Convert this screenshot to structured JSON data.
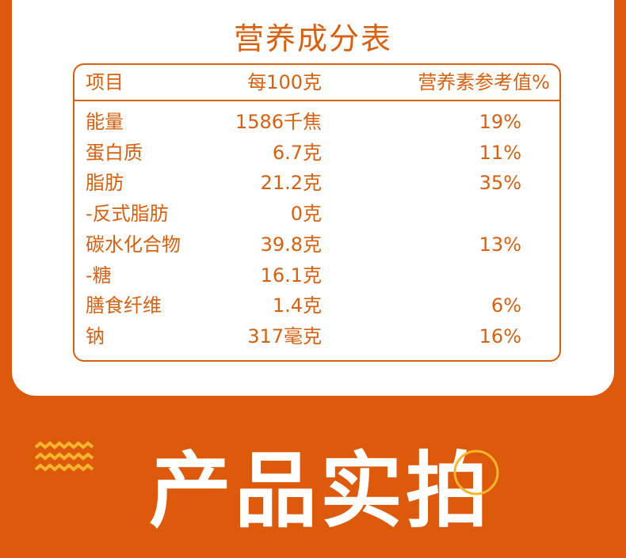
{
  "title": "营养成分表",
  "table": {
    "header": [
      "项目",
      "每100克",
      "营养素参考值%"
    ],
    "rows": [
      [
        "能量",
        "1586千焦",
        "19%"
      ],
      [
        "蛋白质",
        "6.7克",
        "11%"
      ],
      [
        "脂肪",
        "21.2克",
        "35%"
      ],
      [
        "-反式脂肪",
        "0克"
      ],
      [
        "碳水化合物",
        "39.8克",
        "13%"
      ],
      [
        "-糖",
        "16.1克"
      ],
      [
        "膳食纤维",
        "1.4克",
        "6%"
      ],
      [
        "钠",
        "317毫克",
        "16%"
      ]
    ]
  },
  "section_title": "产品实拍"
}
